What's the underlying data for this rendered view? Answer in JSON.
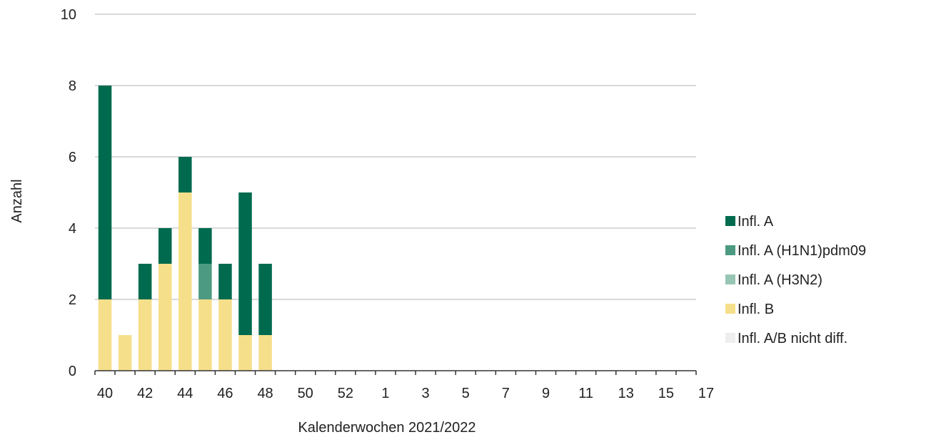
{
  "chart_data": {
    "type": "bar",
    "stacked": true,
    "xlabel": "Kalenderwochen 2021/2022",
    "ylabel": "Anzahl",
    "ylim": [
      0,
      10
    ],
    "yticks": [
      0,
      2,
      4,
      6,
      8,
      10
    ],
    "grid": true,
    "legend_position": "right",
    "categories": [
      "40",
      "41",
      "42",
      "43",
      "44",
      "45",
      "46",
      "47",
      "48",
      "49",
      "50",
      "51",
      "52",
      "1",
      "2",
      "3",
      "4",
      "5",
      "6",
      "7",
      "8",
      "9",
      "10",
      "11",
      "12",
      "13",
      "14",
      "15",
      "16",
      "17"
    ],
    "tick_labels": [
      "40",
      "",
      "42",
      "",
      "44",
      "",
      "46",
      "",
      "48",
      "",
      "50",
      "",
      "52",
      "",
      "1",
      "",
      "3",
      "",
      "5",
      "",
      "7",
      "",
      "9",
      "",
      "11",
      "",
      "13",
      "",
      "15",
      "",
      "17",
      ""
    ],
    "series": [
      {
        "name": "Infl. A",
        "color": "#006a4e",
        "values": [
          6,
          0,
          1,
          1,
          1,
          1,
          1,
          4,
          2,
          0,
          0,
          0,
          0,
          0,
          0,
          0,
          0,
          0,
          0,
          0,
          0,
          0,
          0,
          0,
          0,
          0,
          0,
          0,
          0,
          0
        ]
      },
      {
        "name": "Infl. A (H1N1)pdm09",
        "color": "#4d9a82",
        "values": [
          0,
          0,
          0,
          0,
          0,
          1,
          0,
          0,
          0,
          0,
          0,
          0,
          0,
          0,
          0,
          0,
          0,
          0,
          0,
          0,
          0,
          0,
          0,
          0,
          0,
          0,
          0,
          0,
          0,
          0
        ]
      },
      {
        "name": "Infl. A (H3N2)",
        "color": "#97c6b5",
        "values": [
          0,
          0,
          0,
          0,
          0,
          0,
          0,
          0,
          0,
          0,
          0,
          0,
          0,
          0,
          0,
          0,
          0,
          0,
          0,
          0,
          0,
          0,
          0,
          0,
          0,
          0,
          0,
          0,
          0,
          0
        ]
      },
      {
        "name": "Infl. B",
        "color": "#f6df8a",
        "values": [
          2,
          1,
          2,
          3,
          5,
          2,
          2,
          1,
          1,
          0,
          0,
          0,
          0,
          0,
          0,
          0,
          0,
          0,
          0,
          0,
          0,
          0,
          0,
          0,
          0,
          0,
          0,
          0,
          0,
          0
        ]
      },
      {
        "name": "Infl. A/B nicht diff.",
        "color": "#eeeeee",
        "values": [
          0,
          0,
          0,
          0,
          0,
          0,
          0,
          0,
          0,
          0,
          0,
          0,
          0,
          0,
          0,
          0,
          0,
          0,
          0,
          0,
          0,
          0,
          0,
          0,
          0,
          0,
          0,
          0,
          0,
          0
        ]
      }
    ],
    "stack_order": [
      "Infl. B",
      "Infl. A/B nicht diff.",
      "Infl. A (H3N2)",
      "Infl. A (H1N1)pdm09",
      "Infl. A"
    ]
  }
}
